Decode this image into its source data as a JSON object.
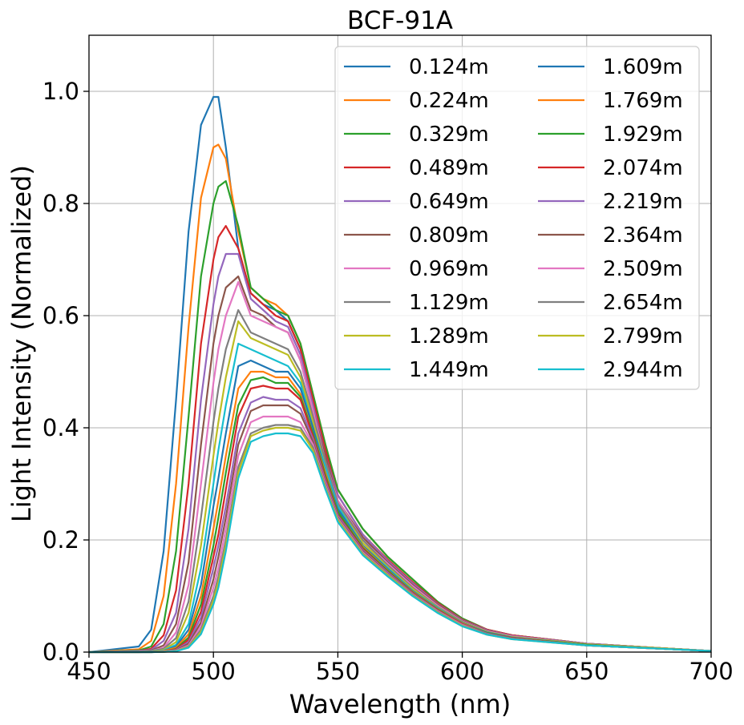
{
  "chart_data": {
    "type": "line",
    "title": "BCF-91A",
    "xlabel": "Wavelength (nm)",
    "ylabel": "Light Intensity (Normalized)",
    "xlim": [
      450,
      700
    ],
    "ylim": [
      0,
      1.1
    ],
    "xticks": [
      450,
      500,
      550,
      600,
      650,
      700
    ],
    "xtick_labels": [
      "450",
      "500",
      "550",
      "600",
      "650",
      "700"
    ],
    "yticks": [
      0,
      0.2,
      0.4,
      0.6,
      0.8,
      1.0
    ],
    "ytick_labels": [
      "0.0",
      "0.2",
      "0.4",
      "0.6",
      "0.8",
      "1.0"
    ],
    "grid": true,
    "legend_position": "top-right",
    "legend_columns": 2,
    "x": [
      450,
      470,
      475,
      480,
      485,
      490,
      495,
      500,
      502,
      505,
      510,
      515,
      520,
      525,
      530,
      535,
      540,
      545,
      550,
      560,
      570,
      580,
      590,
      600,
      610,
      620,
      650,
      680,
      700
    ],
    "series": [
      {
        "name": "0.124m",
        "color": "#1f77b4",
        "values": [
          0.0,
          0.01,
          0.04,
          0.18,
          0.45,
          0.75,
          0.94,
          0.99,
          0.99,
          0.9,
          0.72,
          0.64,
          0.62,
          0.61,
          0.59,
          0.54,
          0.45,
          0.36,
          0.29,
          0.22,
          0.17,
          0.13,
          0.09,
          0.06,
          0.04,
          0.03,
          0.015,
          0.007,
          0.002
        ]
      },
      {
        "name": "0.224m",
        "color": "#ff7f0e",
        "values": [
          0.0,
          0.005,
          0.02,
          0.1,
          0.3,
          0.58,
          0.81,
          0.9,
          0.905,
          0.88,
          0.75,
          0.65,
          0.63,
          0.62,
          0.6,
          0.55,
          0.46,
          0.37,
          0.29,
          0.22,
          0.17,
          0.13,
          0.09,
          0.06,
          0.04,
          0.03,
          0.015,
          0.007,
          0.002
        ]
      },
      {
        "name": "0.329m",
        "color": "#2ca02c",
        "values": [
          0.0,
          0.003,
          0.01,
          0.05,
          0.18,
          0.42,
          0.67,
          0.8,
          0.83,
          0.84,
          0.76,
          0.65,
          0.63,
          0.61,
          0.6,
          0.55,
          0.46,
          0.37,
          0.29,
          0.22,
          0.17,
          0.13,
          0.09,
          0.06,
          0.04,
          0.03,
          0.015,
          0.007,
          0.002
        ]
      },
      {
        "name": "0.489m",
        "color": "#d62728",
        "values": [
          0.0,
          0.002,
          0.006,
          0.03,
          0.11,
          0.3,
          0.55,
          0.7,
          0.74,
          0.76,
          0.72,
          0.64,
          0.62,
          0.6,
          0.59,
          0.54,
          0.45,
          0.36,
          0.28,
          0.21,
          0.165,
          0.125,
          0.088,
          0.058,
          0.04,
          0.03,
          0.015,
          0.007,
          0.002
        ]
      },
      {
        "name": "0.649m",
        "color": "#9467bd",
        "values": [
          0.0,
          0.002,
          0.004,
          0.02,
          0.07,
          0.22,
          0.45,
          0.62,
          0.67,
          0.71,
          0.71,
          0.63,
          0.61,
          0.59,
          0.58,
          0.53,
          0.44,
          0.35,
          0.28,
          0.21,
          0.163,
          0.123,
          0.086,
          0.057,
          0.039,
          0.029,
          0.015,
          0.007,
          0.002
        ]
      },
      {
        "name": "0.809m",
        "color": "#8c564b",
        "values": [
          0.0,
          0.001,
          0.003,
          0.012,
          0.05,
          0.16,
          0.37,
          0.55,
          0.6,
          0.65,
          0.67,
          0.61,
          0.6,
          0.58,
          0.57,
          0.52,
          0.43,
          0.35,
          0.27,
          0.205,
          0.16,
          0.12,
          0.085,
          0.056,
          0.038,
          0.028,
          0.014,
          0.007,
          0.002
        ]
      },
      {
        "name": "0.969m",
        "color": "#e377c2",
        "values": [
          0.0,
          0.001,
          0.002,
          0.008,
          0.035,
          0.12,
          0.3,
          0.48,
          0.54,
          0.6,
          0.66,
          0.6,
          0.59,
          0.58,
          0.57,
          0.52,
          0.43,
          0.34,
          0.27,
          0.2,
          0.158,
          0.118,
          0.083,
          0.055,
          0.037,
          0.028,
          0.014,
          0.007,
          0.002
        ]
      },
      {
        "name": "1.129m",
        "color": "#7f7f7f",
        "values": [
          0.0,
          0.001,
          0.002,
          0.006,
          0.025,
          0.09,
          0.24,
          0.41,
          0.47,
          0.54,
          0.61,
          0.57,
          0.56,
          0.55,
          0.54,
          0.5,
          0.42,
          0.34,
          0.265,
          0.2,
          0.155,
          0.115,
          0.081,
          0.054,
          0.036,
          0.027,
          0.014,
          0.007,
          0.002
        ]
      },
      {
        "name": "1.289m",
        "color": "#bcbd22",
        "values": [
          0.0,
          0.0005,
          0.001,
          0.004,
          0.018,
          0.07,
          0.19,
          0.35,
          0.41,
          0.49,
          0.59,
          0.56,
          0.55,
          0.54,
          0.53,
          0.49,
          0.41,
          0.33,
          0.26,
          0.195,
          0.152,
          0.113,
          0.08,
          0.053,
          0.036,
          0.027,
          0.014,
          0.007,
          0.002
        ]
      },
      {
        "name": "1.449m",
        "color": "#17becf",
        "values": [
          0.0,
          0.0005,
          0.001,
          0.003,
          0.013,
          0.05,
          0.15,
          0.3,
          0.36,
          0.44,
          0.55,
          0.54,
          0.53,
          0.52,
          0.51,
          0.48,
          0.4,
          0.33,
          0.26,
          0.19,
          0.15,
          0.11,
          0.079,
          0.052,
          0.035,
          0.026,
          0.013,
          0.006,
          0.002
        ]
      },
      {
        "name": "1.609m",
        "color": "#1f77b4",
        "values": [
          0.0,
          0.0,
          0.001,
          0.002,
          0.01,
          0.04,
          0.12,
          0.26,
          0.31,
          0.39,
          0.51,
          0.52,
          0.51,
          0.5,
          0.5,
          0.47,
          0.4,
          0.32,
          0.255,
          0.19,
          0.148,
          0.109,
          0.078,
          0.052,
          0.035,
          0.026,
          0.013,
          0.006,
          0.002
        ]
      },
      {
        "name": "1.769m",
        "color": "#ff7f0e",
        "values": [
          0.0,
          0.0,
          0.0005,
          0.002,
          0.008,
          0.032,
          0.1,
          0.22,
          0.27,
          0.35,
          0.47,
          0.5,
          0.5,
          0.49,
          0.49,
          0.46,
          0.39,
          0.32,
          0.25,
          0.188,
          0.146,
          0.108,
          0.077,
          0.051,
          0.034,
          0.025,
          0.013,
          0.006,
          0.002
        ]
      },
      {
        "name": "1.929m",
        "color": "#2ca02c",
        "values": [
          0.0,
          0.0,
          0.0005,
          0.001,
          0.006,
          0.026,
          0.085,
          0.19,
          0.24,
          0.32,
          0.44,
          0.485,
          0.49,
          0.48,
          0.48,
          0.455,
          0.39,
          0.315,
          0.25,
          0.186,
          0.145,
          0.107,
          0.076,
          0.05,
          0.034,
          0.025,
          0.013,
          0.006,
          0.002
        ]
      },
      {
        "name": "2.074m",
        "color": "#d62728",
        "values": [
          0.0,
          0.0,
          0.0005,
          0.001,
          0.005,
          0.022,
          0.072,
          0.17,
          0.21,
          0.29,
          0.42,
          0.47,
          0.475,
          0.47,
          0.47,
          0.45,
          0.385,
          0.31,
          0.245,
          0.184,
          0.143,
          0.106,
          0.075,
          0.05,
          0.033,
          0.025,
          0.012,
          0.006,
          0.002
        ]
      },
      {
        "name": "2.219m",
        "color": "#9467bd",
        "values": [
          0.0,
          0.0,
          0.0,
          0.001,
          0.004,
          0.018,
          0.062,
          0.15,
          0.19,
          0.26,
          0.39,
          0.445,
          0.455,
          0.45,
          0.45,
          0.435,
          0.38,
          0.305,
          0.243,
          0.182,
          0.142,
          0.105,
          0.074,
          0.049,
          0.033,
          0.024,
          0.012,
          0.006,
          0.002
        ]
      },
      {
        "name": "2.364m",
        "color": "#8c564b",
        "values": [
          0.0,
          0.0,
          0.0,
          0.001,
          0.003,
          0.015,
          0.053,
          0.13,
          0.17,
          0.24,
          0.37,
          0.43,
          0.44,
          0.44,
          0.44,
          0.425,
          0.375,
          0.3,
          0.24,
          0.18,
          0.14,
          0.104,
          0.073,
          0.048,
          0.032,
          0.024,
          0.012,
          0.006,
          0.002
        ]
      },
      {
        "name": "2.509m",
        "color": "#e377c2",
        "values": [
          0.0,
          0.0,
          0.0,
          0.0008,
          0.0025,
          0.012,
          0.046,
          0.115,
          0.15,
          0.22,
          0.35,
          0.41,
          0.42,
          0.42,
          0.42,
          0.41,
          0.37,
          0.298,
          0.238,
          0.178,
          0.139,
          0.103,
          0.073,
          0.048,
          0.032,
          0.024,
          0.012,
          0.006,
          0.002
        ]
      },
      {
        "name": "2.654m",
        "color": "#7f7f7f",
        "values": [
          0.0,
          0.0,
          0.0,
          0.0006,
          0.002,
          0.01,
          0.04,
          0.1,
          0.135,
          0.2,
          0.33,
          0.39,
          0.4,
          0.405,
          0.405,
          0.4,
          0.365,
          0.295,
          0.236,
          0.176,
          0.138,
          0.102,
          0.072,
          0.047,
          0.032,
          0.024,
          0.012,
          0.006,
          0.002
        ]
      },
      {
        "name": "2.799m",
        "color": "#bcbd22",
        "values": [
          0.0,
          0.0,
          0.0,
          0.0005,
          0.0018,
          0.009,
          0.036,
          0.092,
          0.125,
          0.19,
          0.32,
          0.385,
          0.395,
          0.4,
          0.4,
          0.395,
          0.36,
          0.293,
          0.235,
          0.175,
          0.137,
          0.101,
          0.071,
          0.047,
          0.031,
          0.023,
          0.012,
          0.006,
          0.002
        ]
      },
      {
        "name": "2.944m",
        "color": "#17becf",
        "values": [
          0.0,
          0.0,
          0.0,
          0.0004,
          0.0015,
          0.008,
          0.032,
          0.085,
          0.115,
          0.18,
          0.31,
          0.375,
          0.385,
          0.39,
          0.39,
          0.385,
          0.355,
          0.29,
          0.232,
          0.173,
          0.135,
          0.1,
          0.07,
          0.046,
          0.031,
          0.023,
          0.012,
          0.006,
          0.002
        ]
      }
    ]
  }
}
